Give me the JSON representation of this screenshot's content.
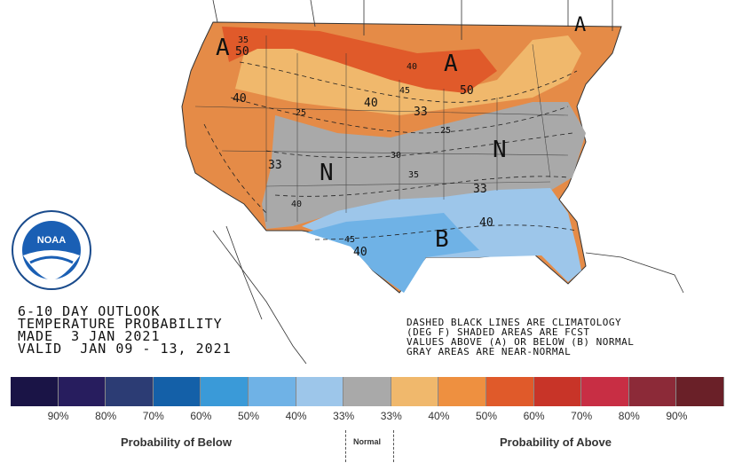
{
  "outlook": {
    "line1": "6-10 DAY OUTLOOK",
    "line2": "TEMPERATURE PROBABILITY",
    "line3": "MADE  3 JAN 2021",
    "line4": "VALID  JAN 09 - 13, 2021"
  },
  "note": {
    "line1": "DASHED BLACK LINES ARE CLIMATOLOGY",
    "line2": "(DEG F) SHADED AREAS ARE FCST",
    "line3": "VALUES ABOVE (A) OR BELOW (B) NORMAL",
    "line4": "GRAY AREAS ARE NEAR-NORMAL"
  },
  "logo": {
    "text": "NOAA",
    "icon": "noaa-seal-icon"
  },
  "map_letters": {
    "a1": "A",
    "a2": "A",
    "a3": "A",
    "n1": "N",
    "n2": "N",
    "b1": "B"
  },
  "map_numbers": {
    "n35": "35",
    "n50a": "50",
    "n40a": "40",
    "n40b": "40",
    "n45a": "45",
    "n40c": "40",
    "n50b": "50",
    "n25a": "25",
    "n33a": "33",
    "n33b": "33",
    "n25b": "25",
    "n30": "30",
    "n35b": "35",
    "n33c": "33",
    "n40d": "40",
    "n40e": "40",
    "n45b": "45",
    "n40f": "40"
  },
  "legend": {
    "colors": [
      "#1a1446",
      "#271d5e",
      "#2c3c74",
      "#1460a8",
      "#3a9ad8",
      "#6fb2e6",
      "#9dc6ea",
      "#a9a9a9",
      "#f0b86c",
      "#ee9040",
      "#e05a2a",
      "#c83428",
      "#c82e44",
      "#8c2a38",
      "#6a2028"
    ],
    "percent_labels": [
      "90%",
      "80%",
      "70%",
      "60%",
      "50%",
      "40%",
      "33%",
      "33%",
      "40%",
      "50%",
      "60%",
      "70%",
      "80%",
      "90%"
    ],
    "below_caption": "Probability of Below",
    "normal_caption": "Normal",
    "above_caption": "Probability of Above"
  }
}
